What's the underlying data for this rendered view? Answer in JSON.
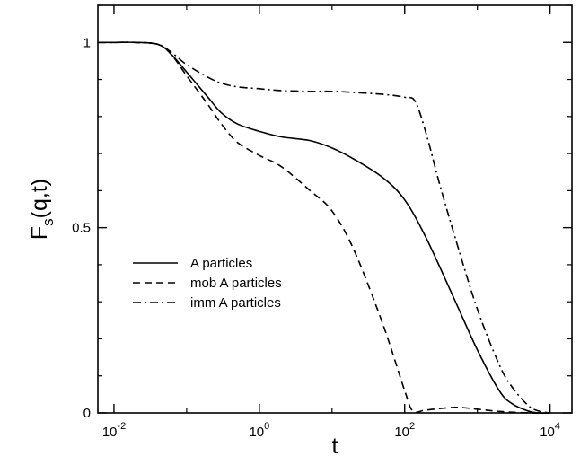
{
  "chart_data": {
    "type": "line",
    "x_scale": "log",
    "xlim": [
      0.006,
      20000
    ],
    "ylim": [
      0,
      1.1
    ],
    "xlabel": "t",
    "ylabel": "F",
    "ylabel_sub": "s",
    "ylabel_suffix": "(q,t)",
    "grid": false,
    "legend_position": "center-left",
    "x_ticks": [
      {
        "value": 0.01,
        "base": "10",
        "exp": "-2"
      },
      {
        "value": 1,
        "base": "10",
        "exp": "0"
      },
      {
        "value": 100,
        "base": "10",
        "exp": "2"
      },
      {
        "value": 10000,
        "base": "10",
        "exp": "4"
      }
    ],
    "y_ticks": [
      {
        "value": 0,
        "label": "0"
      },
      {
        "value": 0.5,
        "label": "0.5"
      },
      {
        "value": 1,
        "label": "1"
      }
    ],
    "series": [
      {
        "name": "A particles",
        "style": "solid",
        "x": [
          0.006,
          0.01,
          0.02,
          0.04,
          0.06,
          0.1,
          0.2,
          0.3,
          0.5,
          1,
          2,
          5,
          10,
          20,
          50,
          100,
          200,
          500,
          1000,
          2000,
          3000,
          5000,
          7000,
          10000
        ],
        "y": [
          1.0,
          1.0,
          1.0,
          0.995,
          0.97,
          0.92,
          0.85,
          0.81,
          0.78,
          0.76,
          0.745,
          0.735,
          0.715,
          0.685,
          0.635,
          0.575,
          0.47,
          0.3,
          0.17,
          0.06,
          0.025,
          0.005,
          0.0,
          0.0
        ]
      },
      {
        "name": "mob A particles",
        "style": "dashed",
        "x": [
          0.006,
          0.01,
          0.02,
          0.04,
          0.06,
          0.1,
          0.2,
          0.3,
          0.5,
          1,
          2,
          5,
          10,
          20,
          50,
          100,
          130,
          200,
          500,
          1000,
          2000,
          5000,
          10000
        ],
        "y": [
          1.0,
          1.0,
          1.0,
          0.995,
          0.97,
          0.91,
          0.83,
          0.78,
          0.73,
          0.695,
          0.665,
          0.6,
          0.545,
          0.44,
          0.24,
          0.06,
          0.005,
          0.008,
          0.015,
          0.01,
          0.004,
          0.0,
          0.0
        ]
      },
      {
        "name": "imm A particles",
        "style": "dashdot",
        "x": [
          0.006,
          0.01,
          0.02,
          0.04,
          0.06,
          0.1,
          0.2,
          0.3,
          0.5,
          1,
          2,
          5,
          10,
          20,
          50,
          100,
          140,
          200,
          300,
          500,
          1000,
          2000,
          3000,
          5000,
          7000,
          10000
        ],
        "y": [
          1.0,
          1.0,
          1.0,
          0.995,
          0.975,
          0.94,
          0.905,
          0.89,
          0.88,
          0.875,
          0.87,
          0.868,
          0.868,
          0.865,
          0.86,
          0.852,
          0.84,
          0.75,
          0.62,
          0.47,
          0.28,
          0.13,
          0.07,
          0.02,
          0.005,
          0.0
        ]
      }
    ]
  }
}
